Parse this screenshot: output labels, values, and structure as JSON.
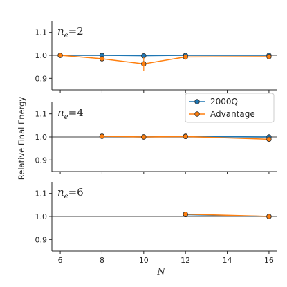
{
  "chart_data": {
    "type": "line",
    "shared_xlabel": "N",
    "shared_ylabel": "Relative Final Energy",
    "xlim": [
      5.6,
      16.4
    ],
    "xticks": [
      6,
      8,
      10,
      12,
      14,
      16
    ],
    "ylim": [
      0.85,
      1.15
    ],
    "yticks": [
      0.9,
      1.0,
      1.1
    ],
    "ytick_labels": [
      "0.9",
      "1.0",
      "1.1"
    ],
    "reference_line": 1.0,
    "legend": {
      "placement": "right, in middle panel",
      "entries": [
        {
          "name": "2000Q",
          "color": "#1f77b4"
        },
        {
          "name": "Advantage",
          "color": "#ff7f0e"
        }
      ]
    },
    "panels": [
      {
        "label_var": "n",
        "label_sub": "e",
        "label_eq": "=2",
        "series": [
          {
            "name": "2000Q",
            "color": "#1f77b4",
            "x": [
              6,
              8,
              10,
              12,
              16
            ],
            "y": [
              1.0,
              1.0,
              0.998,
              1.0,
              1.0
            ],
            "err": [
              0.001,
              0.002,
              0.003,
              0.002,
              0.003
            ]
          },
          {
            "name": "Advantage",
            "color": "#ff7f0e",
            "x": [
              6,
              8,
              10,
              12,
              16
            ],
            "y": [
              1.0,
              0.985,
              0.963,
              0.993,
              0.994
            ],
            "err": [
              0.002,
              0.014,
              0.03,
              0.012,
              0.012
            ]
          }
        ]
      },
      {
        "label_var": "n",
        "label_sub": "e",
        "label_eq": "=4",
        "series": [
          {
            "name": "2000Q",
            "color": "#1f77b4",
            "x": [
              8,
              10,
              12,
              16
            ],
            "y": [
              1.003,
              1.0,
              1.003,
              1.0
            ],
            "err": [
              0.002,
              0.002,
              0.002,
              0.003
            ]
          },
          {
            "name": "Advantage",
            "color": "#ff7f0e",
            "x": [
              8,
              10,
              12,
              16
            ],
            "y": [
              1.003,
              1.0,
              1.002,
              0.99
            ],
            "err": [
              0.003,
              0.003,
              0.003,
              0.006
            ]
          }
        ]
      },
      {
        "label_var": "n",
        "label_sub": "e",
        "label_eq": "=6",
        "series": [
          {
            "name": "2000Q",
            "color": "#1f77b4",
            "x": [
              12,
              16
            ],
            "y": [
              1.008,
              1.0
            ],
            "err": [
              0.002,
              0.002
            ]
          },
          {
            "name": "Advantage",
            "color": "#ff7f0e",
            "x": [
              12,
              16
            ],
            "y": [
              1.01,
              1.0
            ],
            "err": [
              0.003,
              0.003
            ]
          }
        ]
      }
    ]
  }
}
